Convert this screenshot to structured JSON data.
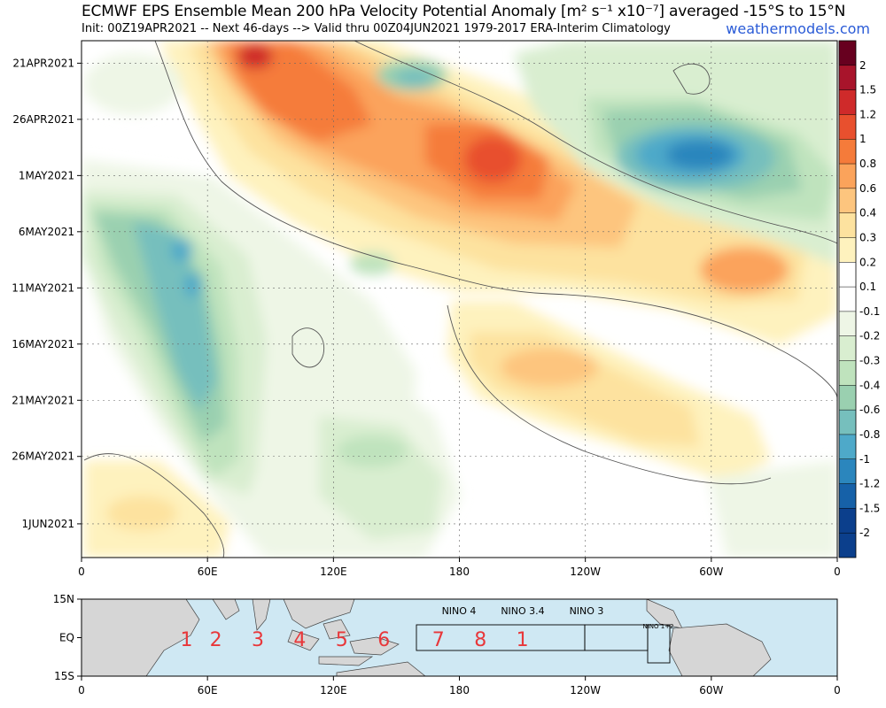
{
  "header": {
    "title": "ECMWF EPS Ensemble Mean 200 hPa Velocity Potential Anomaly [m² s⁻¹ x10⁻⁷] averaged -15°S to 15°N",
    "subtitle": "Init: 00Z19APR2021 -- Next 46-days --> Valid thru 00Z04JUN2021 1979-2017 ERA-Interim Climatology",
    "brand": "weathermodels.com"
  },
  "chart_data": {
    "type": "heatmap",
    "x_ticks": [
      "0",
      "60E",
      "120E",
      "180",
      "120W",
      "60W",
      "0"
    ],
    "x_tick_lon": [
      0,
      60,
      120,
      180,
      240,
      300,
      360
    ],
    "y_ticks": [
      "21APR2021",
      "26APR2021",
      "1MAY2021",
      "6MAY2021",
      "11MAY2021",
      "16MAY2021",
      "21MAY2021",
      "26MAY2021",
      "1JUN2021"
    ],
    "y_tick_day": [
      2,
      7,
      12,
      17,
      22,
      27,
      32,
      37,
      43
    ],
    "xlim": [
      0,
      360
    ],
    "ylim_days": [
      0,
      46
    ],
    "colorbar": {
      "levels": [
        "2",
        "1.5",
        "1.2",
        "1",
        "0.8",
        "0.6",
        "0.4",
        "0.3",
        "0.2",
        "0.1",
        "-0.1",
        "-0.2",
        "-0.3",
        "-0.4",
        "-0.6",
        "-0.8",
        "-1",
        "-1.2",
        "-1.5",
        "-2"
      ],
      "colors": [
        "#67001f",
        "#a8142b",
        "#cf2a2a",
        "#e8502e",
        "#f57b3a",
        "#fba35b",
        "#fdc57e",
        "#fde29f",
        "#fef2be",
        "#ffffff",
        "#ffffff",
        "#eef6e6",
        "#d9eed0",
        "#bfe3bd",
        "#9ad0b0",
        "#76bfbd",
        "#4ea9c9",
        "#2b86bd",
        "#1661a8",
        "#0b3f8c"
      ]
    },
    "anomaly_features": [
      {
        "id": "pos-east-indian-ocean",
        "lon": [
          70,
          95
        ],
        "day": [
          0,
          4
        ],
        "value": 1.0
      },
      {
        "id": "pos-central-pacific",
        "lon": [
          180,
          205
        ],
        "day": [
          9,
          14
        ],
        "value": 0.8
      },
      {
        "id": "pos-south-america",
        "lon": [
          290,
          320
        ],
        "day": [
          18,
          23
        ],
        "value": 0.6
      },
      {
        "id": "pos-dateline-late",
        "lon": [
          180,
          270
        ],
        "day": [
          25,
          35
        ],
        "value": 0.3
      },
      {
        "id": "neg-indian-ocean",
        "lon": [
          25,
          75
        ],
        "day": [
          13,
          38
        ],
        "value": -0.6
      },
      {
        "id": "neg-atlantic",
        "lon": [
          275,
          325
        ],
        "day": [
          7,
          13
        ],
        "value": -1.0
      },
      {
        "id": "neg-maritime-continent",
        "lon": [
          110,
          150
        ],
        "day": [
          25,
          43
        ],
        "value": -0.3
      }
    ]
  },
  "map": {
    "lat_ticks": [
      "15N",
      "EQ",
      "15S"
    ],
    "x_ticks": [
      "0",
      "60E",
      "120E",
      "180",
      "120W",
      "60W",
      "0"
    ],
    "phases": [
      "1",
      "2",
      "3",
      "4",
      "5",
      "6",
      "7",
      "8",
      "1"
    ],
    "phase_lon": [
      50,
      64,
      84,
      104,
      124,
      144,
      170,
      190,
      210
    ],
    "nino_labels": [
      "NINO 4",
      "NINO 3.4",
      "NINO 3",
      "NINO 1+2"
    ],
    "ocean_color": "#cfe8f3",
    "land_color": "#d6d6d6",
    "phase_color": "#e8373a"
  }
}
